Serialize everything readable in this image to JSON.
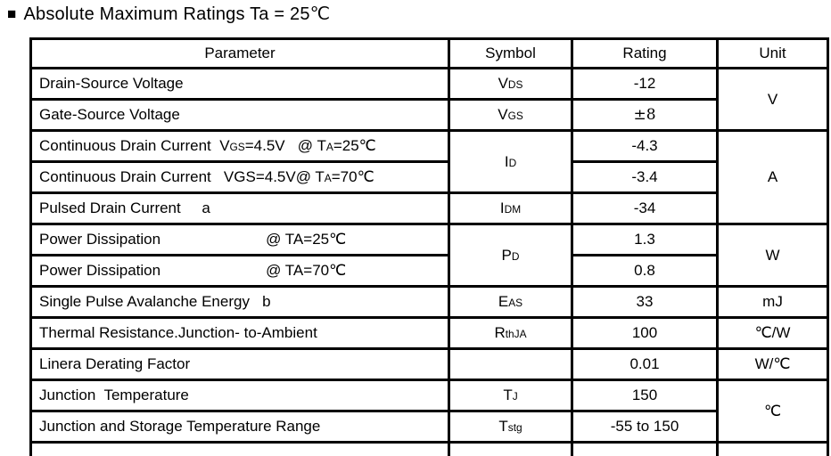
{
  "title": {
    "bullet": "■",
    "text": "Absolute Maximum Ratings Ta = 25℃"
  },
  "table": {
    "headers": [
      "Parameter",
      "Symbol",
      "Rating",
      "Unit"
    ],
    "rows": [
      {
        "parameter": [
          {
            "t": "Drain-Source Voltage"
          }
        ],
        "symbol": {
          "segments": [
            {
              "t": "V"
            },
            {
              "s": "DS"
            }
          ],
          "rowspan": 1
        },
        "rating": "-12",
        "unit": {
          "text": "V",
          "rowspan": 2
        }
      },
      {
        "parameter": [
          {
            "t": "Gate-Source Voltage"
          }
        ],
        "symbol": {
          "segments": [
            {
              "t": "V"
            },
            {
              "s": "GS"
            }
          ],
          "rowspan": 1
        },
        "rating": "±8"
      },
      {
        "parameter": [
          {
            "t": "Continuous Drain Current  V"
          },
          {
            "s": "GS"
          },
          {
            "t": "=4.5V   @ T"
          },
          {
            "s": "A"
          },
          {
            "t": "=25℃"
          }
        ],
        "symbol": {
          "segments": [
            {
              "t": "I"
            },
            {
              "s": "D"
            }
          ],
          "rowspan": 2
        },
        "rating": "-4.3",
        "unit": {
          "text": "A",
          "rowspan": 3
        }
      },
      {
        "parameter": [
          {
            "t": "Continuous Drain Current   VGS=4.5V@ T"
          },
          {
            "s": "A"
          },
          {
            "t": "=70℃"
          }
        ],
        "rating": "-3.4"
      },
      {
        "parameter": [
          {
            "t": "Pulsed Drain Current     a"
          }
        ],
        "symbol": {
          "segments": [
            {
              "t": "I"
            },
            {
              "s": "DM"
            }
          ],
          "rowspan": 1
        },
        "rating": "-34"
      },
      {
        "parameter": [
          {
            "t": "Power Dissipation                         @ TA=25℃"
          }
        ],
        "symbol": {
          "segments": [
            {
              "t": "P"
            },
            {
              "s": "D"
            }
          ],
          "rowspan": 2
        },
        "rating": "1.3",
        "unit": {
          "text": "W",
          "rowspan": 2
        }
      },
      {
        "parameter": [
          {
            "t": "Power Dissipation                         @ TA=70℃"
          }
        ],
        "rating": "0.8"
      },
      {
        "parameter": [
          {
            "t": "Single Pulse Avalanche Energy   b"
          }
        ],
        "symbol": {
          "segments": [
            {
              "t": "E"
            },
            {
              "s": "AS"
            }
          ],
          "rowspan": 1
        },
        "rating": "33",
        "unit": {
          "text": "mJ",
          "rowspan": 1
        }
      },
      {
        "parameter": [
          {
            "t": "Thermal Resistance.Junction- to-Ambient"
          }
        ],
        "symbol": {
          "segments": [
            {
              "t": "R"
            },
            {
              "s": "thJA"
            }
          ],
          "rowspan": 1
        },
        "rating": "100",
        "unit": {
          "text": "℃/W",
          "rowspan": 1
        }
      },
      {
        "parameter": [
          {
            "t": "Linera Derating Factor"
          }
        ],
        "symbol": {
          "segments": [],
          "rowspan": 1
        },
        "rating": "0.01",
        "unit": {
          "text": "W/℃",
          "rowspan": 1
        }
      },
      {
        "parameter": [
          {
            "t": "Junction  Temperature"
          }
        ],
        "symbol": {
          "segments": [
            {
              "t": "T"
            },
            {
              "s": "J"
            }
          ],
          "rowspan": 1
        },
        "rating": "150",
        "unit": {
          "text": "℃",
          "rowspan": 2
        }
      },
      {
        "parameter": [
          {
            "t": "Junction and Storage Temperature Range"
          }
        ],
        "symbol": {
          "segments": [
            {
              "t": "T"
            },
            {
              "s": "stg"
            }
          ],
          "rowspan": 1
        },
        "rating": "-55 to 150"
      }
    ]
  },
  "colors": {
    "border": "#000000",
    "text": "#000000",
    "background": "#ffffff"
  }
}
